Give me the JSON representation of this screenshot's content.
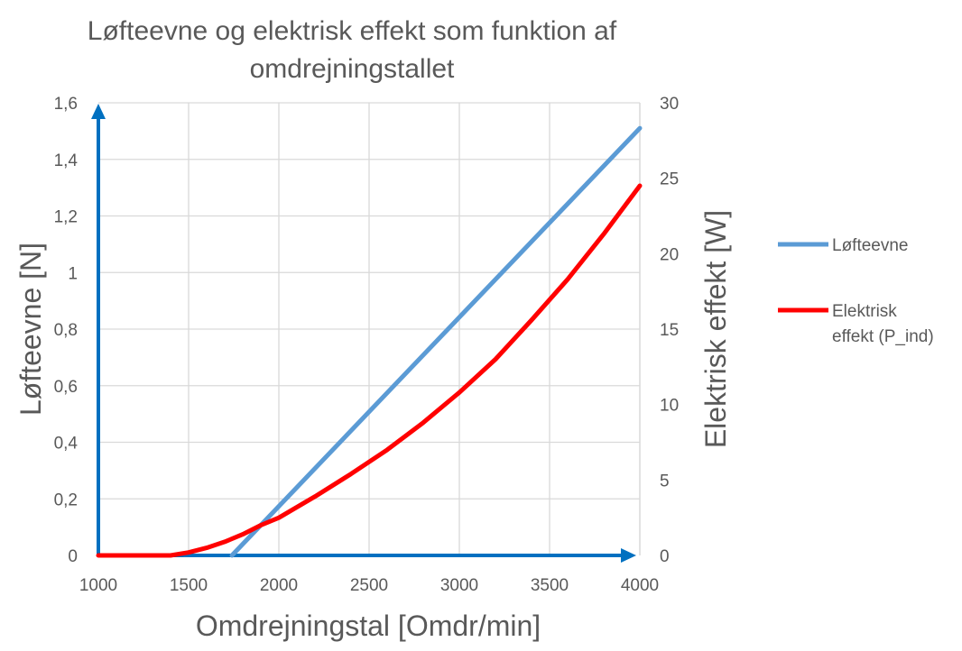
{
  "chart_data": {
    "type": "line",
    "title_lines": [
      "Løfteevne og elektrisk effekt som funktion af",
      "omdrejningstallet"
    ],
    "xlabel": "Omdrejningstal [Omdr/min]",
    "ylabel_left": "Løfteevne [N]",
    "ylabel_right": "Elektrisk effekt [W]",
    "xlim": [
      1000,
      4000
    ],
    "ylim_left": [
      0,
      1.6
    ],
    "ylim_right": [
      0,
      30
    ],
    "x_ticks": [
      "1000",
      "1500",
      "2000",
      "2500",
      "3000",
      "3500",
      "4000"
    ],
    "y_left_ticks": [
      "0",
      "0,2",
      "0,4",
      "0,6",
      "0,8",
      "1",
      "1,2",
      "1,4",
      "1,6"
    ],
    "y_right_ticks": [
      "0",
      "5",
      "10",
      "15",
      "20",
      "25",
      "30"
    ],
    "grid": true,
    "legend_position": "right",
    "series": [
      {
        "name": "Løfteevne",
        "axis": "left",
        "color": "#5b9bd5",
        "x": [
          1740,
          4000
        ],
        "y": [
          0,
          1.51
        ]
      },
      {
        "name": "Elektrisk effekt (P_ind)",
        "legend_lines": [
          "Elektrisk",
          "effekt (P_ind)"
        ],
        "axis": "right",
        "color": "#ff0000",
        "x": [
          1000,
          1400,
          1500,
          1600,
          1700,
          1800,
          1900,
          2000,
          2200,
          2400,
          2600,
          2800,
          3000,
          3200,
          3400,
          3600,
          3800,
          4000
        ],
        "y": [
          0,
          0,
          0.2,
          0.5,
          0.9,
          1.4,
          2.0,
          2.5,
          3.9,
          5.4,
          7.0,
          8.8,
          10.8,
          13.0,
          15.6,
          18.3,
          21.3,
          24.5
        ]
      }
    ]
  }
}
